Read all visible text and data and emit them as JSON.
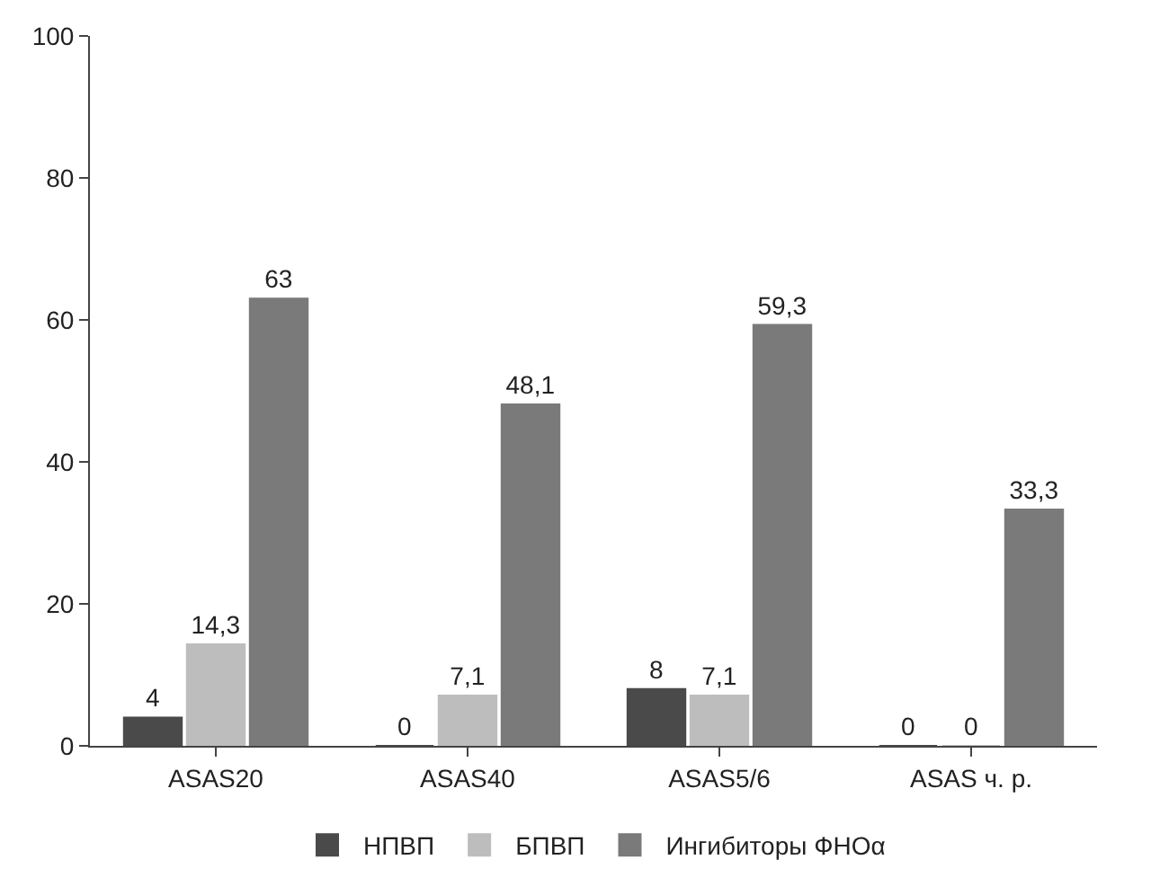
{
  "chart_data": {
    "type": "bar",
    "categories": [
      "ASAS20",
      "ASAS40",
      "ASAS5/6",
      "ASAS ч. р."
    ],
    "series": [
      {
        "name": "НПВП",
        "color": "#4a4a4a",
        "values": [
          4,
          0,
          8,
          0
        ],
        "value_labels": [
          "4",
          "0",
          "8",
          "0"
        ]
      },
      {
        "name": "БПВП",
        "color": "#bdbdbd",
        "values": [
          14.3,
          7.1,
          7.1,
          0
        ],
        "value_labels": [
          "14,3",
          "7,1",
          "7,1",
          "0"
        ]
      },
      {
        "name": "Ингибиторы ФНОα",
        "color": "#7a7a7a",
        "values": [
          63,
          48.1,
          59.3,
          33.3
        ],
        "value_labels": [
          "63",
          "48,1",
          "59,3",
          "33,3"
        ]
      }
    ],
    "ylim": [
      0,
      100
    ],
    "yticks": [
      0,
      20,
      40,
      60,
      80,
      100
    ],
    "legend": "bottom"
  }
}
